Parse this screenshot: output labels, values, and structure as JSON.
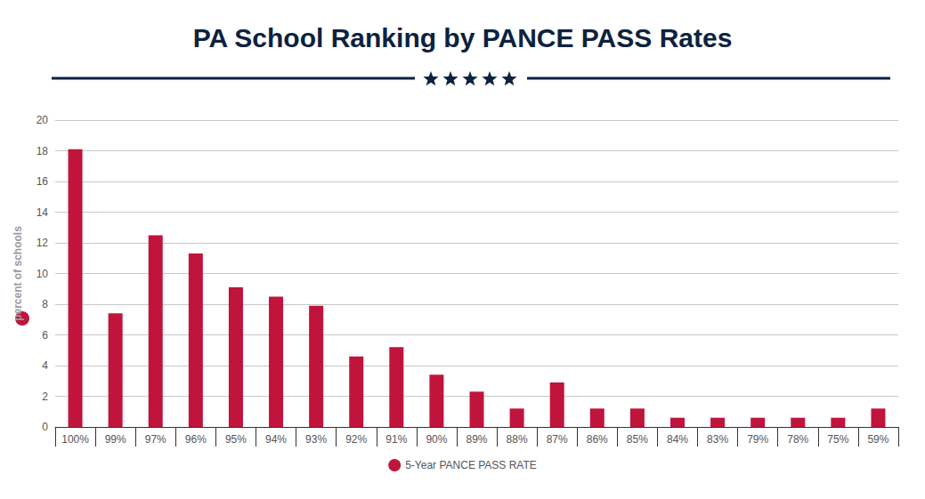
{
  "chart_data": {
    "type": "bar",
    "title": "PA School Ranking by PANCE PASS Rates",
    "y_label": "percent of schools",
    "categories": [
      "100%",
      "99%",
      "97%",
      "96%",
      "95%",
      "94%",
      "93%",
      "92%",
      "91%",
      "90%",
      "89%",
      "88%",
      "87%",
      "86%",
      "85%",
      "84%",
      "83%",
      "79%",
      "78%",
      "75%",
      "59%"
    ],
    "series": [
      {
        "name": "5-Year PANCE PASS RATE",
        "color": "#c0143c",
        "values": [
          18.1,
          7.4,
          12.5,
          11.3,
          9.1,
          8.5,
          7.9,
          4.6,
          5.2,
          3.4,
          2.3,
          1.2,
          2.9,
          1.2,
          1.2,
          0.6,
          0.6,
          0.6,
          0.6,
          0.6,
          1.2
        ]
      }
    ],
    "ylim": [
      0,
      20
    ],
    "yticks": [
      0,
      2,
      4,
      6,
      8,
      10,
      12,
      14,
      16,
      18,
      20
    ],
    "grid": true,
    "legend": "bottom"
  }
}
